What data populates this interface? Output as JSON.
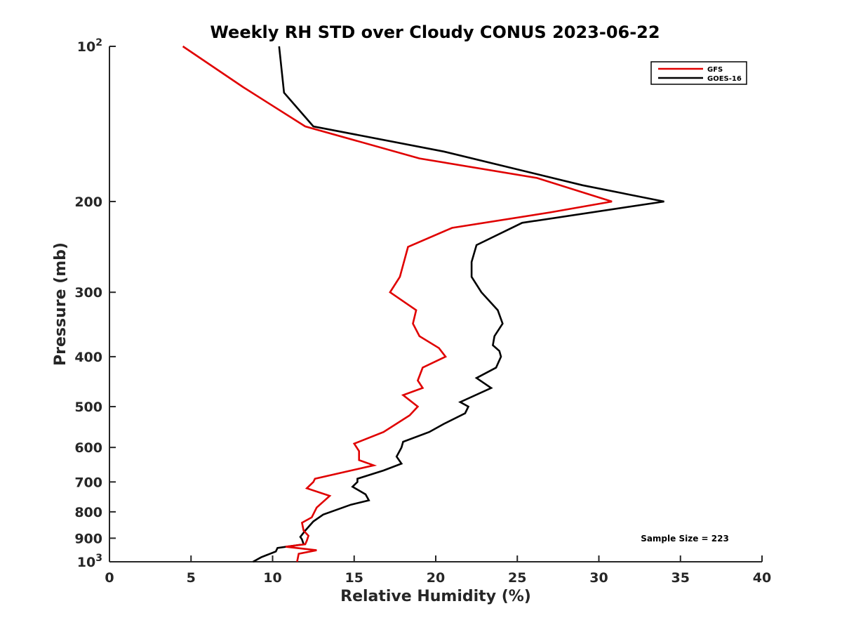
{
  "chart_data": {
    "type": "line",
    "title": "Weekly RH STD over Cloudy CONUS 2023-06-22",
    "xlabel": "Relative Humidity (%)",
    "ylabel": "Pressure (mb)",
    "xlim": [
      0,
      40
    ],
    "ylim": [
      100,
      1000
    ],
    "yscale": "log",
    "y_reversed": true,
    "grid": false,
    "legend_position": "top-right",
    "x_ticks": [
      "0",
      "5",
      "10",
      "15",
      "20",
      "25",
      "30",
      "35",
      "40"
    ],
    "y_ticks": [
      {
        "value": 100,
        "base": "10",
        "exp": "2"
      },
      {
        "value": 200,
        "label": "200"
      },
      {
        "value": 300,
        "label": "300"
      },
      {
        "value": 400,
        "label": "400"
      },
      {
        "value": 500,
        "label": "500"
      },
      {
        "value": 600,
        "label": "600"
      },
      {
        "value": 700,
        "label": "700"
      },
      {
        "value": 800,
        "label": "800"
      },
      {
        "value": 900,
        "label": "900"
      },
      {
        "value": 1000,
        "base": "10",
        "exp": "3"
      }
    ],
    "annotation": "Sample Size = 223",
    "series": [
      {
        "name": "GFS",
        "color": "#e00000",
        "points": [
          [
            4.5,
            100
          ],
          [
            8.2,
            120
          ],
          [
            12.0,
            143
          ],
          [
            19.0,
            165
          ],
          [
            26.2,
            180
          ],
          [
            30.8,
            200
          ],
          [
            27.0,
            210
          ],
          [
            21.0,
            225
          ],
          [
            18.3,
            245
          ],
          [
            17.8,
            280
          ],
          [
            17.2,
            300
          ],
          [
            18.8,
            325
          ],
          [
            18.6,
            345
          ],
          [
            19.0,
            365
          ],
          [
            20.2,
            385
          ],
          [
            20.6,
            400
          ],
          [
            19.2,
            420
          ],
          [
            18.9,
            445
          ],
          [
            19.2,
            460
          ],
          [
            18.0,
            475
          ],
          [
            18.9,
            500
          ],
          [
            18.4,
            520
          ],
          [
            16.8,
            560
          ],
          [
            15.0,
            590
          ],
          [
            15.3,
            610
          ],
          [
            15.3,
            635
          ],
          [
            16.2,
            650
          ],
          [
            12.6,
            690
          ],
          [
            12.5,
            700
          ],
          [
            12.1,
            720
          ],
          [
            13.5,
            745
          ],
          [
            12.7,
            785
          ],
          [
            12.4,
            820
          ],
          [
            11.8,
            840
          ],
          [
            11.9,
            870
          ],
          [
            12.2,
            890
          ],
          [
            12.1,
            910
          ],
          [
            12.0,
            925
          ],
          [
            10.8,
            935
          ],
          [
            12.7,
            950
          ],
          [
            11.6,
            965
          ],
          [
            11.5,
            1000
          ]
        ]
      },
      {
        "name": "GOES-16",
        "color": "#000000",
        "points": [
          [
            10.4,
            100
          ],
          [
            10.7,
            123
          ],
          [
            12.5,
            143
          ],
          [
            20.5,
            160
          ],
          [
            29.0,
            186
          ],
          [
            34.0,
            200
          ],
          [
            25.3,
            220
          ],
          [
            22.5,
            243
          ],
          [
            22.2,
            262
          ],
          [
            22.2,
            280
          ],
          [
            22.8,
            300
          ],
          [
            23.8,
            325
          ],
          [
            24.1,
            345
          ],
          [
            23.6,
            365
          ],
          [
            23.5,
            380
          ],
          [
            23.9,
            390
          ],
          [
            24.0,
            400
          ],
          [
            23.7,
            420
          ],
          [
            22.5,
            440
          ],
          [
            23.4,
            460
          ],
          [
            21.5,
            490
          ],
          [
            22.0,
            500
          ],
          [
            21.8,
            515
          ],
          [
            20.5,
            540
          ],
          [
            19.6,
            560
          ],
          [
            18.0,
            585
          ],
          [
            17.9,
            600
          ],
          [
            17.6,
            625
          ],
          [
            17.9,
            645
          ],
          [
            16.8,
            665
          ],
          [
            15.2,
            690
          ],
          [
            15.2,
            700
          ],
          [
            14.9,
            715
          ],
          [
            15.7,
            740
          ],
          [
            15.9,
            760
          ],
          [
            14.8,
            775
          ],
          [
            13.1,
            810
          ],
          [
            12.5,
            835
          ],
          [
            12.0,
            870
          ],
          [
            11.7,
            895
          ],
          [
            11.8,
            905
          ],
          [
            11.9,
            925
          ],
          [
            10.3,
            940
          ],
          [
            10.2,
            955
          ],
          [
            9.3,
            980
          ],
          [
            8.8,
            1000
          ]
        ]
      }
    ]
  }
}
